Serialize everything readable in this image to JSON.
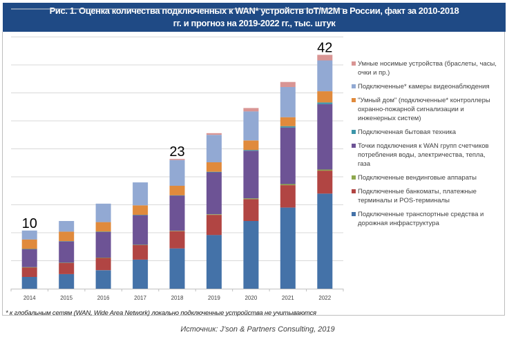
{
  "header": {
    "title_line1": "Рис. 1. Оценка количества подключенных  к WAN* устройств IoT/M2M в России, факт за 2010-2018",
    "title_line2": "гг. и прогноз на 2019-2022  гг., тыс. штук"
  },
  "chart_data": {
    "type": "bar",
    "stacked": true,
    "title": "Оценка количества подключенных к WAN* устройств IoT/M2M в России, факт за 2010-2018 гг. и прогноз на 2019-2022 гг., тыс. штук",
    "xlabel": "",
    "ylabel": "",
    "ylim": [
      0,
      50
    ],
    "grid": true,
    "grid_step": 5,
    "legend_position": "right",
    "categories": [
      "2014",
      "2015",
      "2016",
      "2017",
      "2018",
      "2019",
      "2020",
      "2021",
      "2022"
    ],
    "series": [
      {
        "name": "Подключенные транспортные средства и дорожная инфраструктура",
        "color": "#4472a8",
        "values": [
          2.1,
          2.6,
          3.3,
          5.2,
          7.2,
          9.6,
          12.1,
          14.5,
          17.0
        ]
      },
      {
        "name": "Подключенные банкоматы, платежные терминалы и POS-терминалы",
        "color": "#b14543",
        "values": [
          1.7,
          2.0,
          2.2,
          2.6,
          3.1,
          3.6,
          3.9,
          4.0,
          4.1
        ]
      },
      {
        "name": "Подключенные вендинговые аппараты",
        "color": "#8ea84e",
        "values": [
          0.05,
          0.05,
          0.05,
          0.05,
          0.05,
          0.1,
          0.15,
          0.2,
          0.2
        ]
      },
      {
        "name": "Точки подключения к WAN групп счетчиков потребления воды, электричества, тепла, газа",
        "color": "#6d5395",
        "values": [
          3.2,
          3.8,
          4.6,
          5.3,
          6.3,
          7.5,
          8.5,
          10.1,
          11.7
        ]
      },
      {
        "name": "Подключенная бытовая техника",
        "color": "#3c95a9",
        "values": [
          0.05,
          0.05,
          0.05,
          0.05,
          0.05,
          0.1,
          0.15,
          0.25,
          0.3
        ]
      },
      {
        "name": "\"Умный дом\" (подключенные* контроллеры охранно-пожарной сигнализации и инженерных систем)",
        "color": "#e08a3c",
        "values": [
          1.7,
          1.7,
          1.7,
          1.7,
          1.7,
          1.7,
          1.7,
          1.6,
          2.0
        ]
      },
      {
        "name": "Подключенные* камеры видеонаблюдения",
        "color": "#92a9d3",
        "values": [
          1.6,
          1.9,
          3.3,
          4.1,
          4.6,
          4.9,
          5.2,
          5.4,
          5.5
        ]
      },
      {
        "name": "Умные носимые устройства (браслеты, часы, очки и пр.)",
        "color": "#d99594",
        "values": [
          0.0,
          0.0,
          0.0,
          0.0,
          0.2,
          0.3,
          0.6,
          0.9,
          1.0
        ]
      }
    ],
    "annotations": [
      {
        "category": "2014",
        "text": "10"
      },
      {
        "category": "2018",
        "text": "23"
      },
      {
        "category": "2022",
        "text": "42"
      }
    ]
  },
  "legend": {
    "items": [
      {
        "line1": "Умные носимые устройства (браслеты, часы,",
        "line2": "очки и пр.)",
        "line3": "",
        "color": "#d99594"
      },
      {
        "line1": "Подключенные* камеры видеонаблюдения",
        "line2": "",
        "line3": "",
        "color": "#92a9d3"
      },
      {
        "line1": "\"Умный дом\" (подключенные* контроллеры",
        "line2": "охранно-пожарной сигнализации и",
        "line3": "инженерных систем)",
        "color": "#e08a3c"
      },
      {
        "line1": "Подключенная бытовая техника",
        "line2": "",
        "line3": "",
        "color": "#3c95a9"
      },
      {
        "line1": "Точки подключения к WAN групп счетчиков",
        "line2": "потребления воды, электричества, тепла,",
        "line3": "газа",
        "color": "#6d5395"
      },
      {
        "line1": "Подключенные вендинговые аппараты",
        "line2": "",
        "line3": "",
        "color": "#8ea84e"
      },
      {
        "line1": "Подключенные банкоматы, платежные",
        "line2": "терминалы и POS-терминалы",
        "line3": "",
        "color": "#b14543"
      },
      {
        "line1": "Подключенные транспортные средства и",
        "line2": "дорожная инфраструктура",
        "line3": "",
        "color": "#4472a8"
      }
    ]
  },
  "footnote": "* к глобальным сетям (WAN, Wide Area Network) локально подключенные устройства не учитываются",
  "source": "Источник: J’son & Partners Consulting, 2019"
}
